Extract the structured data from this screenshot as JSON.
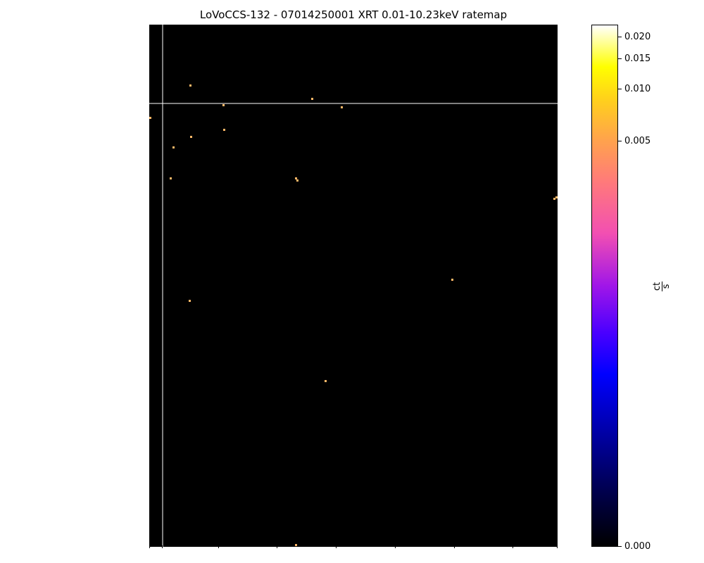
{
  "chart_data": {
    "type": "heatmap",
    "title": "LoVoCCS-132 - 07014250001 XRT 0.01-10.23keV ratemap",
    "colorbar": {
      "label_numerator": "ct",
      "label_denominator": "s",
      "scale": "sqrt",
      "colormap": "gnuplot2",
      "range": [
        0.0,
        0.022
      ],
      "ticks": [
        {
          "value": 0.0,
          "label": "0.000"
        },
        {
          "value": 0.005,
          "label": "0.005"
        },
        {
          "value": 0.01,
          "label": "0.010"
        },
        {
          "value": 0.015,
          "label": "0.015"
        },
        {
          "value": 0.02,
          "label": "0.020"
        }
      ]
    },
    "background_color": "#000000",
    "point_color": "#ffb868"
  }
}
